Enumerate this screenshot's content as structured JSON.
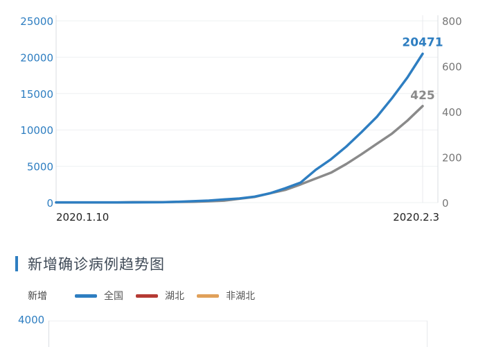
{
  "chart_data": [
    {
      "type": "line",
      "title": "",
      "x_start_label": "2020.1.10",
      "x_end_label": "2020.2.3",
      "y_left": {
        "ticks": [
          0,
          5000,
          10000,
          15000,
          20000,
          25000
        ],
        "range": [
          0,
          25000
        ]
      },
      "y_right": {
        "ticks": [
          0,
          200,
          400,
          600,
          800
        ],
        "range": [
          0,
          800
        ]
      },
      "series": [
        {
          "axis": "left",
          "color": "#2e7ec1",
          "end_label": "20471",
          "x": [
            "2020.1.10",
            "2020.1.11",
            "2020.1.12",
            "2020.1.13",
            "2020.1.14",
            "2020.1.15",
            "2020.1.16",
            "2020.1.17",
            "2020.1.18",
            "2020.1.19",
            "2020.1.20",
            "2020.1.21",
            "2020.1.22",
            "2020.1.23",
            "2020.1.24",
            "2020.1.25",
            "2020.1.26",
            "2020.1.27",
            "2020.1.28",
            "2020.1.29",
            "2020.1.30",
            "2020.1.31",
            "2020.2.1",
            "2020.2.2",
            "2020.2.3"
          ],
          "values": [
            41,
            41,
            41,
            41,
            41,
            41,
            45,
            62,
            121,
            198,
            291,
            440,
            571,
            830,
            1287,
            1975,
            2744,
            4515,
            5974,
            7711,
            9692,
            11791,
            14380,
            17205,
            20471
          ]
        },
        {
          "axis": "right",
          "color": "#8a8a8a",
          "end_label": "425",
          "x": [
            "2020.1.10",
            "2020.1.11",
            "2020.1.12",
            "2020.1.13",
            "2020.1.14",
            "2020.1.15",
            "2020.1.16",
            "2020.1.17",
            "2020.1.18",
            "2020.1.19",
            "2020.1.20",
            "2020.1.21",
            "2020.1.22",
            "2020.1.23",
            "2020.1.24",
            "2020.1.25",
            "2020.1.26",
            "2020.1.27",
            "2020.1.28",
            "2020.1.29",
            "2020.1.30",
            "2020.1.31",
            "2020.2.1",
            "2020.2.2",
            "2020.2.3"
          ],
          "values": [
            1,
            1,
            1,
            1,
            1,
            2,
            2,
            2,
            3,
            4,
            6,
            9,
            17,
            25,
            41,
            56,
            80,
            106,
            132,
            170,
            213,
            259,
            304,
            361,
            425
          ]
        }
      ]
    },
    {
      "type": "line",
      "title": "新增确诊病例趋势图",
      "ylabel": "新增",
      "y_left": {
        "ticks": [
          4000
        ]
      },
      "legend": [
        {
          "name": "全国",
          "color": "#2e7ec1"
        },
        {
          "name": "湖北",
          "color": "#b53a34"
        },
        {
          "name": "非湖北",
          "color": "#e0a05a"
        }
      ],
      "legend_placement": "top-left"
    }
  ]
}
